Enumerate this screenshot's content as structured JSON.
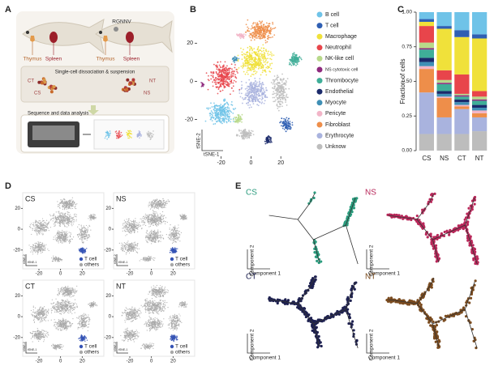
{
  "panel_labels": [
    "A",
    "B",
    "C",
    "D",
    "E"
  ],
  "panel_a": {
    "fish_control": {
      "organs": [
        "Thymus",
        "Spleen"
      ]
    },
    "fish_infected": {
      "virus": "RGNNV",
      "organs": [
        "Thymus",
        "Spleen"
      ]
    },
    "step_1": "Single-cell dissociation & suspension",
    "samples": [
      "CT",
      "CS",
      "NT",
      "NS"
    ],
    "step_2": "Sequence and data analysis"
  },
  "chart_data": [
    {
      "type": "scatter",
      "xlabel": "tSNE-1",
      "ylabel": "tSNE-2",
      "xlim": [
        -35,
        40
      ],
      "ylim": [
        -38,
        35
      ],
      "xticks": [
        -20,
        0,
        20
      ],
      "yticks": [
        -20,
        0,
        20
      ],
      "series": [
        {
          "name": "B cell",
          "color": "#6fc3e8"
        },
        {
          "name": "T cell",
          "color": "#2f5fb3"
        },
        {
          "name": "Macrophage",
          "color": "#f0e13a"
        },
        {
          "name": "Neutrophil",
          "color": "#e8454b"
        },
        {
          "name": "NK-like cell",
          "color": "#b8d98a"
        },
        {
          "name": "NS cytotoxic cell",
          "color": "#8e2a7e"
        },
        {
          "name": "Thrombocyte",
          "color": "#3fae98"
        },
        {
          "name": "Endothelial",
          "color": "#1b2a6b"
        },
        {
          "name": "Myocyte",
          "color": "#3f8fb5"
        },
        {
          "name": "Pericyte",
          "color": "#f2b5c8"
        },
        {
          "name": "Fibroblast",
          "color": "#ee8e4a"
        },
        {
          "name": "Erythrocyte",
          "color": "#a9b3de"
        },
        {
          "name": "Unknow",
          "color": "#bdbdbd"
        }
      ]
    },
    {
      "type": "bar",
      "stacked": true,
      "ylabel": "Fraction of cells",
      "categories": [
        "CS",
        "NS",
        "CT",
        "NT"
      ],
      "ylim": [
        0,
        1
      ],
      "yticks": [
        {
          "value": 0,
          "label": "0.00"
        },
        {
          "value": 0.25,
          "label": "0.25"
        },
        {
          "value": 0.5,
          "label": "0.50"
        },
        {
          "value": 0.75,
          "label": "0.75"
        },
        {
          "value": 1,
          "label": "1.00"
        }
      ],
      "series": [
        {
          "name": "B cell",
          "color": "#6fc3e8",
          "values": [
            0.05,
            0.1,
            0.13,
            0.16
          ]
        },
        {
          "name": "T cell",
          "color": "#2f5fb3",
          "values": [
            0.02,
            0.02,
            0.05,
            0.03
          ]
        },
        {
          "name": "Macrophage",
          "color": "#f0e13a",
          "values": [
            0.03,
            0.3,
            0.27,
            0.38
          ]
        },
        {
          "name": "Neutrophil",
          "color": "#e8454b",
          "values": [
            0.12,
            0.07,
            0.14,
            0.04
          ]
        },
        {
          "name": "NK-like cell",
          "color": "#b8d98a",
          "values": [
            0.04,
            0.02,
            0.01,
            0.02
          ]
        },
        {
          "name": "NS cytotoxic cell",
          "color": "#8e2a7e",
          "values": [
            0.01,
            0.01,
            0.01,
            0.01
          ]
        },
        {
          "name": "Thrombocyte",
          "color": "#3fae98",
          "values": [
            0.06,
            0.05,
            0.02,
            0.03
          ]
        },
        {
          "name": "Endothelial",
          "color": "#1b2a6b",
          "values": [
            0.03,
            0.02,
            0.02,
            0.02
          ]
        },
        {
          "name": "Myocyte",
          "color": "#3f8fb5",
          "values": [
            0.03,
            0.02,
            0.02,
            0.02
          ]
        },
        {
          "name": "Pericyte",
          "color": "#f2b5c8",
          "values": [
            0.02,
            0.01,
            0.01,
            0.02
          ]
        },
        {
          "name": "Fibroblast",
          "color": "#ee8e4a",
          "values": [
            0.17,
            0.14,
            0.02,
            0.03
          ]
        },
        {
          "name": "Erythrocyte",
          "color": "#a9b3de",
          "values": [
            0.3,
            0.12,
            0.18,
            0.1
          ]
        },
        {
          "name": "Unknow",
          "color": "#bdbdbd",
          "values": [
            0.12,
            0.12,
            0.12,
            0.14
          ]
        }
      ]
    }
  ],
  "panel_d": {
    "panels": [
      "CS",
      "NS",
      "CT",
      "NT"
    ],
    "legend": [
      {
        "name": "T cell",
        "color": "#3553b5"
      },
      {
        "name": "others",
        "color": "#a8a8a8"
      }
    ],
    "xlabel": "tSNE-1",
    "ylabel": "tSNE-2",
    "xlim": [
      -35,
      40
    ],
    "ylim": [
      -38,
      35
    ],
    "xticks": [
      -20,
      0,
      20
    ],
    "yticks": [
      -20,
      0,
      20
    ]
  },
  "panel_e": {
    "panels": [
      {
        "name": "CS",
        "color": "#2a9b7d"
      },
      {
        "name": "NS",
        "color": "#b8285a"
      },
      {
        "name": "CT",
        "color": "#1e2150"
      },
      {
        "name": "NT",
        "color": "#7a4b1f"
      }
    ],
    "xlabel": "Component 1",
    "ylabel": "Component 2"
  }
}
